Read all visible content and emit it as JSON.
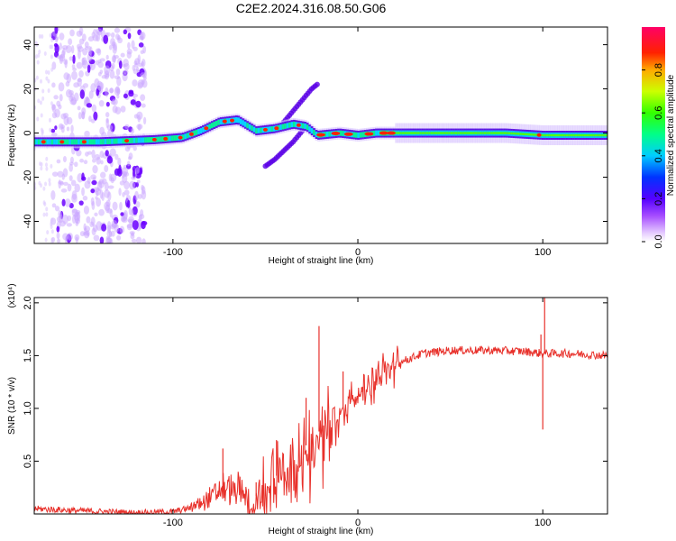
{
  "title": "C2E2.2024.316.08.50.G06",
  "spectrogram": {
    "type": "heatmap",
    "xlabel": "Height of straight line (km)",
    "ylabel": "Frequency (Hz)",
    "xlim": [
      -175,
      135
    ],
    "ylim": [
      -50,
      48
    ],
    "xticks": [
      -100,
      0,
      100
    ],
    "yticks": [
      -40,
      -20,
      0,
      20,
      40
    ],
    "colorbar": {
      "label": "Normalized spectral amplitude",
      "range": [
        0,
        1
      ],
      "ticks": [
        "0.0",
        "0.2",
        "0.4",
        "0.6",
        "0.8"
      ]
    },
    "main_track": [
      [
        -175,
        -4
      ],
      [
        -140,
        -4
      ],
      [
        -110,
        -3
      ],
      [
        -95,
        -2
      ],
      [
        -85,
        1
      ],
      [
        -75,
        5
      ],
      [
        -65,
        6
      ],
      [
        -55,
        1
      ],
      [
        -45,
        2
      ],
      [
        -35,
        4
      ],
      [
        -28,
        3
      ],
      [
        -22,
        -1
      ],
      [
        -10,
        0
      ],
      [
        0,
        -1
      ],
      [
        10,
        0
      ],
      [
        20,
        0
      ],
      [
        40,
        0
      ],
      [
        60,
        0
      ],
      [
        80,
        0
      ],
      [
        100,
        -1
      ],
      [
        115,
        -1
      ],
      [
        135,
        -1
      ]
    ],
    "branch_up": [
      [
        -40,
        5
      ],
      [
        -35,
        10
      ],
      [
        -30,
        15
      ],
      [
        -25,
        20
      ],
      [
        -22,
        22
      ]
    ],
    "branch_down": [
      [
        -50,
        -15
      ],
      [
        -45,
        -12
      ],
      [
        -40,
        -8
      ],
      [
        -35,
        -4
      ],
      [
        -30,
        1
      ]
    ],
    "scatter_region": [
      -165,
      -115
    ]
  },
  "snr": {
    "type": "line",
    "xlabel": "Height of straight line (km)",
    "ylabel": "SNR (10 * v/v)",
    "multiplier": "(x10⁴)",
    "xlim": [
      -175,
      135
    ],
    "ylim": [
      0,
      2.05
    ],
    "xticks": [
      -100,
      0,
      100
    ],
    "yticks": [
      "0.5",
      "1.0",
      "1.5",
      "2.0"
    ],
    "color": "#e8312b",
    "trend": [
      [
        -175,
        0.05
      ],
      [
        -150,
        0.03
      ],
      [
        -120,
        0.01
      ],
      [
        -100,
        0.02
      ],
      [
        -90,
        0.06
      ],
      [
        -80,
        0.15
      ],
      [
        -72,
        0.25
      ],
      [
        -65,
        0.2
      ],
      [
        -58,
        0.12
      ],
      [
        -50,
        0.25
      ],
      [
        -42,
        0.4
      ],
      [
        -35,
        0.55
      ],
      [
        -28,
        0.65
      ],
      [
        -20,
        0.8
      ],
      [
        -12,
        0.95
      ],
      [
        -5,
        1.05
      ],
      [
        5,
        1.2
      ],
      [
        15,
        1.35
      ],
      [
        25,
        1.45
      ],
      [
        35,
        1.52
      ],
      [
        50,
        1.55
      ],
      [
        70,
        1.55
      ],
      [
        90,
        1.54
      ],
      [
        100,
        1.52
      ],
      [
        115,
        1.52
      ],
      [
        135,
        1.5
      ]
    ],
    "spikes": [
      [
        -73,
        0.62
      ],
      [
        -55,
        0.3
      ],
      [
        -44,
        0.7
      ],
      [
        -28,
        1.1
      ],
      [
        -21,
        1.78
      ],
      [
        -8,
        1.35
      ],
      [
        2,
        1.2
      ],
      [
        100,
        0.8
      ],
      [
        101,
        2.05
      ],
      [
        99,
        1.7
      ]
    ]
  }
}
